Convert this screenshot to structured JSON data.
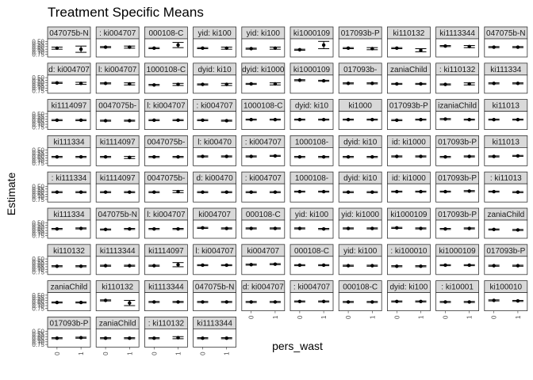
{
  "chart_data": {
    "type": "scatter",
    "title": "Treatment Specific Means",
    "xlabel": "pers_wast",
    "ylabel": "Estimate",
    "x_categories": [
      "0",
      "1"
    ],
    "y_ticks": [
      "0.50",
      "0.55",
      "0.60",
      "0.65",
      "0.70",
      "0.75"
    ],
    "ylim": [
      0.45,
      0.8
    ],
    "grid": false,
    "facets": [
      {
        "strip": "047075b-N",
        "values": [
          0.63,
          0.65
        ],
        "lower": [
          0.61,
          0.59
        ],
        "upper": [
          0.65,
          0.71
        ]
      },
      {
        "strip": ": ki004707",
        "values": [
          0.61,
          0.61
        ],
        "lower": [
          0.6,
          0.59
        ],
        "upper": [
          0.62,
          0.63
        ]
      },
      {
        "strip": "000108-C",
        "values": [
          0.63,
          0.57
        ],
        "lower": [
          0.62,
          0.52
        ],
        "upper": [
          0.64,
          0.62
        ]
      },
      {
        "strip": "yid: ki100",
        "values": [
          0.63,
          0.63
        ],
        "lower": [
          0.62,
          0.61
        ],
        "upper": [
          0.64,
          0.65
        ]
      },
      {
        "strip": "yid: ki100",
        "values": [
          0.64,
          0.63
        ],
        "lower": [
          0.63,
          0.61
        ],
        "upper": [
          0.65,
          0.65
        ]
      },
      {
        "strip": "ki1000109",
        "values": [
          0.66,
          0.57
        ],
        "lower": [
          0.65,
          0.5
        ],
        "upper": [
          0.67,
          0.64
        ]
      },
      {
        "strip": "017093b-P",
        "values": [
          0.63,
          0.64
        ],
        "lower": [
          0.62,
          0.62
        ],
        "upper": [
          0.64,
          0.66
        ]
      },
      {
        "strip": "ki110132",
        "values": [
          0.63,
          0.67
        ],
        "lower": [
          0.62,
          0.64
        ],
        "upper": [
          0.64,
          0.7
        ]
      },
      {
        "strip": "ki1113344",
        "values": [
          0.59,
          0.6
        ],
        "lower": [
          0.58,
          0.58
        ],
        "upper": [
          0.6,
          0.62
        ]
      },
      {
        "strip": "047075b-N",
        "values": [
          0.61,
          0.61
        ],
        "lower": [
          0.6,
          0.6
        ],
        "upper": [
          0.62,
          0.62
        ]
      },
      {
        "strip": "d: ki004707",
        "values": [
          0.6,
          0.61
        ],
        "lower": [
          0.59,
          0.59
        ],
        "upper": [
          0.61,
          0.63
        ]
      },
      {
        "strip": "l: ki004707",
        "values": [
          0.61,
          0.62
        ],
        "lower": [
          0.6,
          0.6
        ],
        "upper": [
          0.62,
          0.64
        ]
      },
      {
        "strip": "1000108-C",
        "values": [
          0.64,
          0.63
        ],
        "lower": [
          0.63,
          0.61
        ],
        "upper": [
          0.65,
          0.65
        ]
      },
      {
        "strip": "dyid: ki10",
        "values": [
          0.63,
          0.63
        ],
        "lower": [
          0.62,
          0.61
        ],
        "upper": [
          0.64,
          0.65
        ]
      },
      {
        "strip": "dyid: ki1000",
        "values": [
          0.62,
          0.62
        ],
        "lower": [
          0.61,
          0.6
        ],
        "upper": [
          0.63,
          0.64
        ]
      },
      {
        "strip": "ki1000109",
        "values": [
          0.55,
          0.56
        ],
        "lower": [
          0.54,
          0.55
        ],
        "upper": [
          0.56,
          0.57
        ]
      },
      {
        "strip": "017093b-",
        "values": [
          0.61,
          0.61
        ],
        "lower": [
          0.6,
          0.6
        ],
        "upper": [
          0.62,
          0.62
        ]
      },
      {
        "strip": "zaniaChild",
        "values": [
          0.62,
          0.62
        ],
        "lower": [
          0.61,
          0.61
        ],
        "upper": [
          0.63,
          0.63
        ]
      },
      {
        "strip": ": ki110132",
        "values": [
          0.63,
          0.62
        ],
        "lower": [
          0.62,
          0.6
        ],
        "upper": [
          0.64,
          0.64
        ]
      },
      {
        "strip": "ki111334",
        "values": [
          0.61,
          0.61
        ],
        "lower": [
          0.6,
          0.6
        ],
        "upper": [
          0.62,
          0.62
        ]
      },
      {
        "strip": "ki1114097",
        "values": [
          0.62,
          0.62
        ],
        "lower": [
          0.61,
          0.61
        ],
        "upper": [
          0.63,
          0.63
        ]
      },
      {
        "strip": "0047075b-",
        "values": [
          0.63,
          0.63
        ],
        "lower": [
          0.62,
          0.62
        ],
        "upper": [
          0.64,
          0.64
        ]
      },
      {
        "strip": "l: ki004707",
        "values": [
          0.62,
          0.62
        ],
        "lower": [
          0.61,
          0.61
        ],
        "upper": [
          0.63,
          0.63
        ]
      },
      {
        "strip": ": ki004707",
        "values": [
          0.62,
          0.63
        ],
        "lower": [
          0.61,
          0.62
        ],
        "upper": [
          0.63,
          0.64
        ]
      },
      {
        "strip": "1000108-C",
        "values": [
          0.61,
          0.61
        ],
        "lower": [
          0.6,
          0.6
        ],
        "upper": [
          0.62,
          0.62
        ]
      },
      {
        "strip": "dyid: ki10",
        "values": [
          0.61,
          0.61
        ],
        "lower": [
          0.6,
          0.6
        ],
        "upper": [
          0.62,
          0.62
        ]
      },
      {
        "strip": "ki1000",
        "values": [
          0.61,
          0.61
        ],
        "lower": [
          0.6,
          0.6
        ],
        "upper": [
          0.62,
          0.62
        ]
      },
      {
        "strip": "017093b-P",
        "values": [
          0.62,
          0.61
        ],
        "lower": [
          0.61,
          0.6
        ],
        "upper": [
          0.63,
          0.62
        ]
      },
      {
        "strip": "izaniaChild",
        "values": [
          0.6,
          0.61
        ],
        "lower": [
          0.59,
          0.6
        ],
        "upper": [
          0.61,
          0.62
        ]
      },
      {
        "strip": "ki11013",
        "values": [
          0.61,
          0.61
        ],
        "lower": [
          0.6,
          0.6
        ],
        "upper": [
          0.62,
          0.62
        ]
      },
      {
        "strip": "ki111334",
        "values": [
          0.63,
          0.63
        ],
        "lower": [
          0.62,
          0.62
        ],
        "upper": [
          0.64,
          0.64
        ]
      },
      {
        "strip": "ki1114097",
        "values": [
          0.63,
          0.64
        ],
        "lower": [
          0.62,
          0.62
        ],
        "upper": [
          0.64,
          0.66
        ]
      },
      {
        "strip": "0047075b-",
        "values": [
          0.63,
          0.63
        ],
        "lower": [
          0.62,
          0.62
        ],
        "upper": [
          0.64,
          0.64
        ]
      },
      {
        "strip": "l: ki00470",
        "values": [
          0.62,
          0.62
        ],
        "lower": [
          0.61,
          0.61
        ],
        "upper": [
          0.63,
          0.63
        ]
      },
      {
        "strip": ": ki004707",
        "values": [
          0.62,
          0.61
        ],
        "lower": [
          0.61,
          0.6
        ],
        "upper": [
          0.63,
          0.62
        ]
      },
      {
        "strip": "1000108-",
        "values": [
          0.63,
          0.63
        ],
        "lower": [
          0.62,
          0.62
        ],
        "upper": [
          0.64,
          0.64
        ]
      },
      {
        "strip": "dyid: ki10",
        "values": [
          0.63,
          0.63
        ],
        "lower": [
          0.62,
          0.62
        ],
        "upper": [
          0.64,
          0.64
        ]
      },
      {
        "strip": "id: ki1000",
        "values": [
          0.62,
          0.62
        ],
        "lower": [
          0.61,
          0.61
        ],
        "upper": [
          0.63,
          0.63
        ]
      },
      {
        "strip": "017093b-P",
        "values": [
          0.63,
          0.62
        ],
        "lower": [
          0.62,
          0.61
        ],
        "upper": [
          0.64,
          0.63
        ]
      },
      {
        "strip": "ki11013",
        "values": [
          0.62,
          0.61
        ],
        "lower": [
          0.61,
          0.6
        ],
        "upper": [
          0.63,
          0.62
        ]
      },
      {
        "strip": ": ki111334",
        "values": [
          0.61,
          0.61
        ],
        "lower": [
          0.6,
          0.6
        ],
        "upper": [
          0.62,
          0.62
        ]
      },
      {
        "strip": "ki1114097",
        "values": [
          0.61,
          0.61
        ],
        "lower": [
          0.6,
          0.6
        ],
        "upper": [
          0.62,
          0.62
        ]
      },
      {
        "strip": "0047075b-",
        "values": [
          0.61,
          0.6
        ],
        "lower": [
          0.6,
          0.58
        ],
        "upper": [
          0.62,
          0.62
        ]
      },
      {
        "strip": "d: ki00470",
        "values": [
          0.61,
          0.61
        ],
        "lower": [
          0.6,
          0.6
        ],
        "upper": [
          0.62,
          0.62
        ]
      },
      {
        "strip": ": ki004707",
        "values": [
          0.61,
          0.61
        ],
        "lower": [
          0.6,
          0.6
        ],
        "upper": [
          0.62,
          0.62
        ]
      },
      {
        "strip": "1000108-",
        "values": [
          0.6,
          0.6
        ],
        "lower": [
          0.59,
          0.59
        ],
        "upper": [
          0.61,
          0.61
        ]
      },
      {
        "strip": "dyid: ki10",
        "values": [
          0.61,
          0.61
        ],
        "lower": [
          0.6,
          0.6
        ],
        "upper": [
          0.62,
          0.62
        ]
      },
      {
        "strip": "id: ki1000",
        "values": [
          0.6,
          0.6
        ],
        "lower": [
          0.59,
          0.59
        ],
        "upper": [
          0.61,
          0.61
        ]
      },
      {
        "strip": "017093b-P",
        "values": [
          0.6,
          0.59
        ],
        "lower": [
          0.59,
          0.58
        ],
        "upper": [
          0.61,
          0.6
        ]
      },
      {
        "strip": ": ki11013",
        "values": [
          0.6,
          0.61
        ],
        "lower": [
          0.59,
          0.6
        ],
        "upper": [
          0.61,
          0.62
        ]
      },
      {
        "strip": "ki111334",
        "values": [
          0.62,
          0.61
        ],
        "lower": [
          0.61,
          0.6
        ],
        "upper": [
          0.63,
          0.62
        ]
      },
      {
        "strip": "047075b-N",
        "values": [
          0.63,
          0.62
        ],
        "lower": [
          0.62,
          0.61
        ],
        "upper": [
          0.64,
          0.63
        ]
      },
      {
        "strip": "l: ki004707",
        "values": [
          0.62,
          0.62
        ],
        "lower": [
          0.61,
          0.61
        ],
        "upper": [
          0.63,
          0.63
        ]
      },
      {
        "strip": "ki004707",
        "values": [
          0.6,
          0.61
        ],
        "lower": [
          0.59,
          0.6
        ],
        "upper": [
          0.61,
          0.62
        ]
      },
      {
        "strip": "000108-C",
        "values": [
          0.61,
          0.61
        ],
        "lower": [
          0.6,
          0.6
        ],
        "upper": [
          0.62,
          0.62
        ]
      },
      {
        "strip": "yid: ki100",
        "values": [
          0.61,
          0.62
        ],
        "lower": [
          0.6,
          0.61
        ],
        "upper": [
          0.62,
          0.63
        ]
      },
      {
        "strip": "yid: ki1000",
        "values": [
          0.61,
          0.61
        ],
        "lower": [
          0.6,
          0.6
        ],
        "upper": [
          0.62,
          0.62
        ]
      },
      {
        "strip": "ki1000109",
        "values": [
          0.6,
          0.61
        ],
        "lower": [
          0.59,
          0.6
        ],
        "upper": [
          0.61,
          0.62
        ]
      },
      {
        "strip": "017093b-P",
        "values": [
          0.62,
          0.61
        ],
        "lower": [
          0.61,
          0.6
        ],
        "upper": [
          0.63,
          0.62
        ]
      },
      {
        "strip": "zaniaChild",
        "values": [
          0.63,
          0.64
        ],
        "lower": [
          0.62,
          0.63
        ],
        "upper": [
          0.64,
          0.65
        ]
      },
      {
        "strip": "ki110132",
        "values": [
          0.64,
          0.64
        ],
        "lower": [
          0.63,
          0.63
        ],
        "upper": [
          0.65,
          0.65
        ]
      },
      {
        "strip": "ki1113344",
        "values": [
          0.63,
          0.63
        ],
        "lower": [
          0.62,
          0.62
        ],
        "upper": [
          0.64,
          0.64
        ]
      },
      {
        "strip": "ki1114097",
        "values": [
          0.63,
          0.61
        ],
        "lower": [
          0.62,
          0.57
        ],
        "upper": [
          0.64,
          0.65
        ]
      },
      {
        "strip": "l: ki004707",
        "values": [
          0.62,
          0.62
        ],
        "lower": [
          0.61,
          0.61
        ],
        "upper": [
          0.63,
          0.63
        ]
      },
      {
        "strip": "ki004707",
        "values": [
          0.61,
          0.6
        ],
        "lower": [
          0.6,
          0.59
        ],
        "upper": [
          0.62,
          0.61
        ]
      },
      {
        "strip": "000108-C",
        "values": [
          0.62,
          0.62
        ],
        "lower": [
          0.61,
          0.61
        ],
        "upper": [
          0.63,
          0.63
        ]
      },
      {
        "strip": "yid: ki100",
        "values": [
          0.63,
          0.63
        ],
        "lower": [
          0.62,
          0.62
        ],
        "upper": [
          0.64,
          0.64
        ]
      },
      {
        "strip": ": ki100010",
        "values": [
          0.64,
          0.64
        ],
        "lower": [
          0.63,
          0.63
        ],
        "upper": [
          0.65,
          0.65
        ]
      },
      {
        "strip": "ki1000109",
        "values": [
          0.62,
          0.62
        ],
        "lower": [
          0.61,
          0.61
        ],
        "upper": [
          0.63,
          0.63
        ]
      },
      {
        "strip": "017093b-P",
        "values": [
          0.63,
          0.63
        ],
        "lower": [
          0.62,
          0.62
        ],
        "upper": [
          0.64,
          0.64
        ]
      },
      {
        "strip": "zaniaChild",
        "values": [
          0.64,
          0.64
        ],
        "lower": [
          0.63,
          0.63
        ],
        "upper": [
          0.65,
          0.65
        ]
      },
      {
        "strip": "ki110132",
        "values": [
          0.6,
          0.65
        ],
        "lower": [
          0.59,
          0.6
        ],
        "upper": [
          0.61,
          0.7
        ]
      },
      {
        "strip": "ki1113344",
        "values": [
          0.63,
          0.63
        ],
        "lower": [
          0.62,
          0.62
        ],
        "upper": [
          0.64,
          0.64
        ]
      },
      {
        "strip": "047075b-N",
        "values": [
          0.63,
          0.63
        ],
        "lower": [
          0.62,
          0.62
        ],
        "upper": [
          0.64,
          0.64
        ]
      },
      {
        "strip": "d: ki004707",
        "values": [
          0.63,
          0.63
        ],
        "lower": [
          0.62,
          0.62
        ],
        "upper": [
          0.64,
          0.64
        ]
      },
      {
        "strip": ": ki004707",
        "values": [
          0.62,
          0.62
        ],
        "lower": [
          0.61,
          0.61
        ],
        "upper": [
          0.63,
          0.63
        ]
      },
      {
        "strip": "000108-C",
        "values": [
          0.63,
          0.63
        ],
        "lower": [
          0.62,
          0.62
        ],
        "upper": [
          0.64,
          0.64
        ]
      },
      {
        "strip": "dyid: ki100",
        "values": [
          0.62,
          0.62
        ],
        "lower": [
          0.61,
          0.61
        ],
        "upper": [
          0.63,
          0.63
        ]
      },
      {
        "strip": ": ki10001",
        "values": [
          0.63,
          0.63
        ],
        "lower": [
          0.62,
          0.62
        ],
        "upper": [
          0.64,
          0.64
        ]
      },
      {
        "strip": "ki100010",
        "values": [
          0.6,
          0.61
        ],
        "lower": [
          0.59,
          0.6
        ],
        "upper": [
          0.61,
          0.62
        ]
      },
      {
        "strip": "017093b-P",
        "values": [
          0.63,
          0.62
        ],
        "lower": [
          0.62,
          0.61
        ],
        "upper": [
          0.64,
          0.63
        ]
      },
      {
        "strip": "zaniaChild",
        "values": [
          0.63,
          0.63
        ],
        "lower": [
          0.62,
          0.62
        ],
        "upper": [
          0.64,
          0.64
        ]
      },
      {
        "strip": ": ki110132",
        "values": [
          0.63,
          0.62
        ],
        "lower": [
          0.62,
          0.6
        ],
        "upper": [
          0.64,
          0.64
        ]
      },
      {
        "strip": "ki1113344",
        "values": [
          0.63,
          0.63
        ],
        "lower": [
          0.62,
          0.62
        ],
        "upper": [
          0.64,
          0.64
        ]
      }
    ]
  }
}
